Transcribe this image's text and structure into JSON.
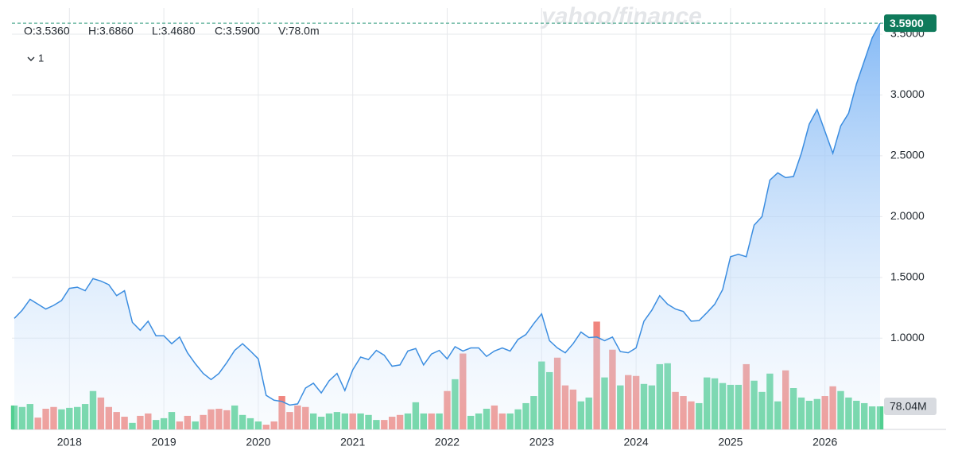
{
  "header": {
    "watermark": "yahoo/finance",
    "quote": [
      "O:3.5360",
      "H:3.6860",
      "L:3.4680",
      "C:3.5900",
      "V:78.0m"
    ],
    "interval": "1"
  },
  "chart_data": {
    "type": "line",
    "categories": [
      null,
      null,
      null,
      null,
      null,
      null,
      null,
      "2018",
      null,
      null,
      null,
      null,
      null,
      null,
      null,
      null,
      null,
      null,
      null,
      "2019",
      null,
      null,
      null,
      null,
      null,
      null,
      null,
      null,
      null,
      null,
      null,
      "2020",
      null,
      null,
      null,
      null,
      null,
      null,
      null,
      null,
      null,
      null,
      null,
      "2021",
      null,
      null,
      null,
      null,
      null,
      null,
      null,
      null,
      null,
      null,
      null,
      "2022",
      null,
      null,
      null,
      null,
      null,
      null,
      null,
      null,
      null,
      null,
      null,
      "2023",
      null,
      null,
      null,
      null,
      null,
      null,
      null,
      null,
      null,
      null,
      null,
      "2024",
      null,
      null,
      null,
      null,
      null,
      null,
      null,
      null,
      null,
      null,
      null,
      "2025",
      null,
      null,
      null,
      null,
      null,
      null,
      null,
      null,
      null,
      null,
      null,
      "2026",
      null,
      null,
      null,
      null,
      null,
      null,
      null
    ],
    "series": [
      {
        "color": "#3b8de0",
        "values": [
          1.163,
          1.23,
          1.32,
          1.28,
          1.24,
          1.27,
          1.31,
          1.41,
          1.42,
          1.39,
          1.49,
          1.47,
          1.44,
          1.35,
          1.39,
          1.13,
          1.065,
          1.14,
          1.02,
          1.02,
          0.955,
          1.01,
          0.88,
          0.79,
          0.71,
          0.66,
          0.71,
          0.8,
          0.9,
          0.955,
          0.895,
          0.83,
          0.53,
          0.49,
          0.48,
          0.45,
          0.46,
          0.59,
          0.63,
          0.55,
          0.65,
          0.71,
          0.57,
          0.74,
          0.845,
          0.825,
          0.9,
          0.86,
          0.77,
          0.78,
          0.895,
          0.915,
          0.78,
          0.87,
          0.9,
          0.83,
          0.93,
          0.895,
          0.92,
          0.92,
          0.85,
          0.895,
          0.92,
          0.895,
          0.99,
          1.03,
          1.12,
          1.2,
          0.98,
          0.92,
          0.88,
          0.955,
          1.05,
          1.005,
          1.01,
          0.98,
          1.01,
          0.89,
          0.88,
          0.92,
          1.14,
          1.23,
          1.35,
          1.28,
          1.24,
          1.22,
          1.14,
          1.145,
          1.21,
          1.28,
          1.4,
          1.67,
          1.69,
          1.67,
          1.93,
          2.0,
          2.3,
          2.36,
          2.32,
          2.33,
          2.52,
          2.76,
          2.88,
          2.7,
          2.52,
          2.745,
          2.85,
          3.09,
          3.28,
          3.47,
          3.59
        ]
      }
    ],
    "volume": {
      "axis": "y2",
      "up_color": "#52cf91",
      "down_color": "#f0857e",
      "values": [
        81,
        76,
        86,
        40,
        70,
        76,
        68,
        73,
        76,
        86,
        130,
        108,
        76,
        59,
        43,
        22,
        46,
        54,
        32,
        38,
        59,
        27,
        46,
        27,
        49,
        68,
        70,
        65,
        81,
        49,
        38,
        27,
        16,
        27,
        113,
        59,
        81,
        76,
        54,
        43,
        54,
        59,
        54,
        54,
        54,
        49,
        32,
        32,
        43,
        49,
        54,
        92,
        54,
        54,
        54,
        130,
        170,
        257,
        46,
        54,
        70,
        81,
        54,
        54,
        68,
        89,
        113,
        230,
        194,
        243,
        149,
        135,
        95,
        108,
        365,
        176,
        270,
        149,
        184,
        181,
        154,
        149,
        221,
        224,
        127,
        113,
        95,
        89,
        176,
        173,
        157,
        151,
        151,
        221,
        165,
        127,
        189,
        95,
        200,
        140,
        108,
        97,
        103,
        113,
        146,
        130,
        108,
        97,
        89,
        78,
        78.04
      ],
      "up": [
        1,
        1,
        1,
        0,
        0,
        0,
        1,
        1,
        1,
        1,
        1,
        0,
        0,
        0,
        0,
        1,
        0,
        0,
        1,
        1,
        1,
        0,
        0,
        1,
        0,
        0,
        0,
        0,
        1,
        1,
        1,
        1,
        0,
        0,
        0,
        0,
        0,
        0,
        1,
        1,
        1,
        1,
        1,
        0,
        1,
        1,
        1,
        0,
        0,
        0,
        1,
        1,
        1,
        0,
        1,
        0,
        1,
        0,
        1,
        1,
        1,
        0,
        0,
        1,
        1,
        1,
        1,
        1,
        1,
        0,
        0,
        0,
        1,
        1,
        0,
        1,
        0,
        1,
        0,
        0,
        1,
        1,
        1,
        1,
        0,
        0,
        0,
        1,
        1,
        1,
        1,
        1,
        1,
        0,
        1,
        1,
        1,
        1,
        0,
        1,
        1,
        1,
        1,
        0,
        0,
        1,
        1,
        1,
        1,
        1,
        1
      ]
    },
    "ylim": [
      0.25,
      3.65
    ],
    "yticks": [
      {
        "value": 1,
        "label": "1.0000"
      },
      {
        "value": 1.5,
        "label": "1.5000"
      },
      {
        "value": 2,
        "label": "2.0000"
      },
      {
        "value": 2.5,
        "label": "2.5000"
      },
      {
        "value": 3,
        "label": "3.0000"
      },
      {
        "value": 3.5,
        "label": "3.5000"
      }
    ],
    "y2lim": [
      0,
      1400
    ],
    "grid": true,
    "last_price_label": "3.5900",
    "last_volume_label": "78.04M"
  }
}
